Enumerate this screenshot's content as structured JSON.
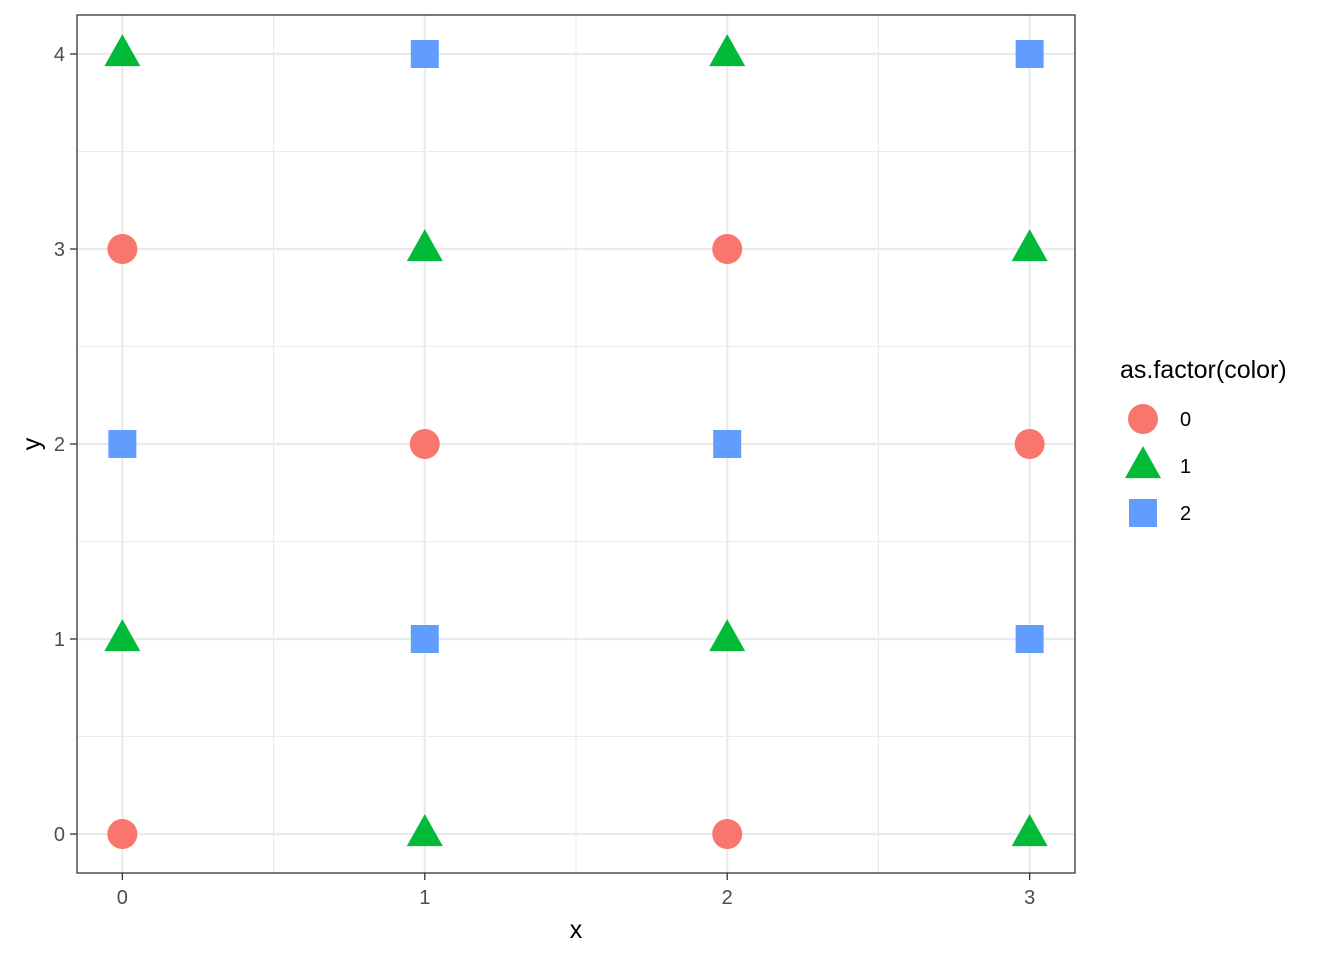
{
  "chart_data": {
    "type": "scatter",
    "xlabel": "x",
    "ylabel": "y",
    "xlim": [
      -0.15,
      3.15
    ],
    "ylim": [
      -0.2,
      4.2
    ],
    "x_ticks": [
      0,
      1,
      2,
      3
    ],
    "y_ticks": [
      0,
      1,
      2,
      3,
      4
    ],
    "grid": true,
    "legend": {
      "title": "as.factor(color)",
      "position": "right",
      "entries": [
        {
          "label": "0",
          "shape": "circle",
          "color": "#F8766D"
        },
        {
          "label": "1",
          "shape": "triangle",
          "color": "#00BA38"
        },
        {
          "label": "2",
          "shape": "square",
          "color": "#619CFF"
        }
      ]
    },
    "points": [
      {
        "x": 0,
        "y": 0,
        "group": "0"
      },
      {
        "x": 0,
        "y": 1,
        "group": "1"
      },
      {
        "x": 0,
        "y": 2,
        "group": "2"
      },
      {
        "x": 0,
        "y": 3,
        "group": "0"
      },
      {
        "x": 0,
        "y": 4,
        "group": "1"
      },
      {
        "x": 1,
        "y": 0,
        "group": "1"
      },
      {
        "x": 1,
        "y": 1,
        "group": "2"
      },
      {
        "x": 1,
        "y": 2,
        "group": "0"
      },
      {
        "x": 1,
        "y": 3,
        "group": "1"
      },
      {
        "x": 1,
        "y": 4,
        "group": "2"
      },
      {
        "x": 2,
        "y": 0,
        "group": "0"
      },
      {
        "x": 2,
        "y": 1,
        "group": "1"
      },
      {
        "x": 2,
        "y": 2,
        "group": "2"
      },
      {
        "x": 2,
        "y": 3,
        "group": "0"
      },
      {
        "x": 2,
        "y": 4,
        "group": "1"
      },
      {
        "x": 3,
        "y": 0,
        "group": "1"
      },
      {
        "x": 3,
        "y": 1,
        "group": "2"
      },
      {
        "x": 3,
        "y": 2,
        "group": "0"
      },
      {
        "x": 3,
        "y": 3,
        "group": "1"
      },
      {
        "x": 3,
        "y": 4,
        "group": "2"
      }
    ]
  }
}
